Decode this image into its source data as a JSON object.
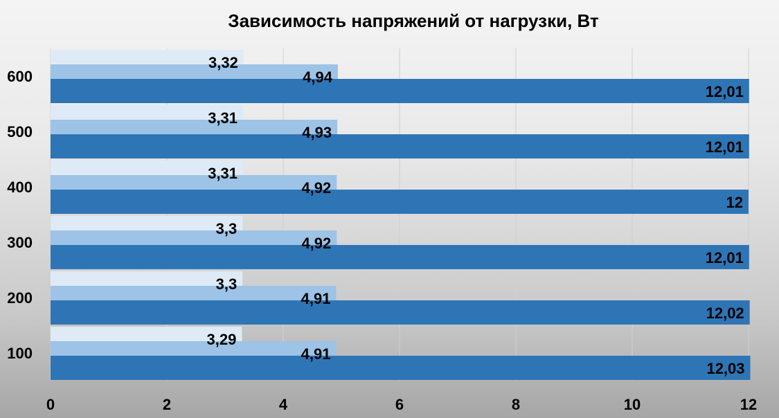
{
  "chart_data": {
    "type": "bar",
    "orientation": "horizontal",
    "title": "Зависимость напряжений от нагрузки, Вт",
    "categories": [
      "100",
      "200",
      "300",
      "400",
      "500",
      "600"
    ],
    "series": [
      {
        "values": [
          12.03,
          12.02,
          12.01,
          12.0,
          12.01,
          12.01
        ],
        "labels": [
          "12,03",
          "12,02",
          "12,01",
          "12",
          "12,01",
          "12,01"
        ],
        "color": "#2e75b6"
      },
      {
        "values": [
          4.91,
          4.91,
          4.92,
          4.92,
          4.93,
          4.94
        ],
        "labels": [
          "4,91",
          "4,91",
          "4,92",
          "4,92",
          "4,93",
          "4,94"
        ],
        "color": "#9dc3e6"
      },
      {
        "values": [
          3.29,
          3.3,
          3.3,
          3.31,
          3.31,
          3.32
        ],
        "labels": [
          "3,29",
          "3,3",
          "3,3",
          "3,31",
          "3,31",
          "3,32"
        ],
        "color": "#deebf7"
      }
    ],
    "xlim": [
      0,
      12
    ],
    "xticks": [
      "0",
      "2",
      "4",
      "6",
      "8",
      "10",
      "12"
    ],
    "grid": true,
    "legend": "none"
  }
}
